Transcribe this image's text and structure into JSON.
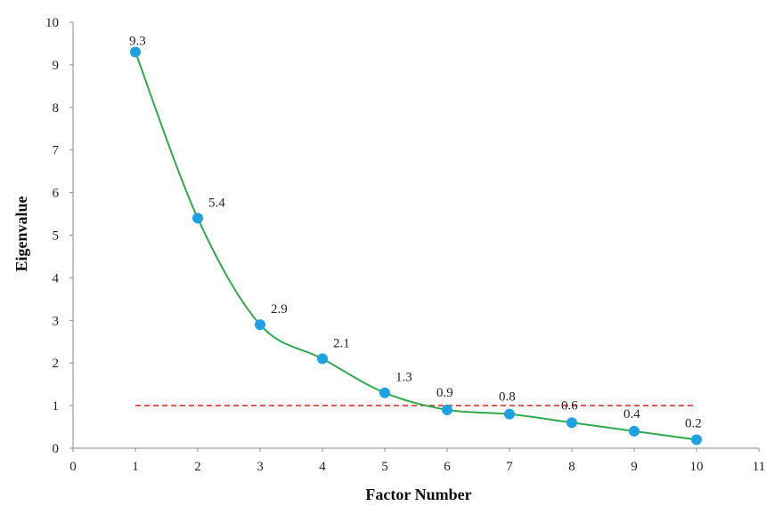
{
  "chart_data": {
    "type": "scatter",
    "title": "",
    "xlabel": "Factor Number",
    "ylabel": "Eigenvalue",
    "xlim": [
      0,
      11
    ],
    "ylim": [
      0,
      10
    ],
    "x_ticks": [
      "0",
      "1",
      "2",
      "3",
      "4",
      "5",
      "6",
      "7",
      "8",
      "9",
      "10",
      "11"
    ],
    "y_ticks": [
      "0",
      "1",
      "2",
      "3",
      "4",
      "5",
      "6",
      "7",
      "8",
      "9",
      "10"
    ],
    "series": [
      {
        "x": [
          1,
          2,
          3,
          4,
          5,
          6,
          7,
          8,
          9,
          10
        ],
        "values": [
          9.3,
          5.4,
          2.9,
          2.1,
          1.3,
          0.9,
          0.8,
          0.6,
          0.4,
          0.2
        ],
        "labels": [
          "9.3",
          "5.4",
          "2.9",
          "2.1",
          "1.3",
          "0.9",
          "0.8",
          "0.6",
          "0.4",
          "0.2"
        ],
        "line": "smooth",
        "line_color": "#2eaa4e",
        "marker_color": "#1ea1e2"
      }
    ],
    "reference_line": {
      "y": 1,
      "x_range": [
        1,
        10
      ],
      "style": "dashed",
      "color": "#e0312b"
    },
    "grid": false,
    "legend": "none"
  }
}
